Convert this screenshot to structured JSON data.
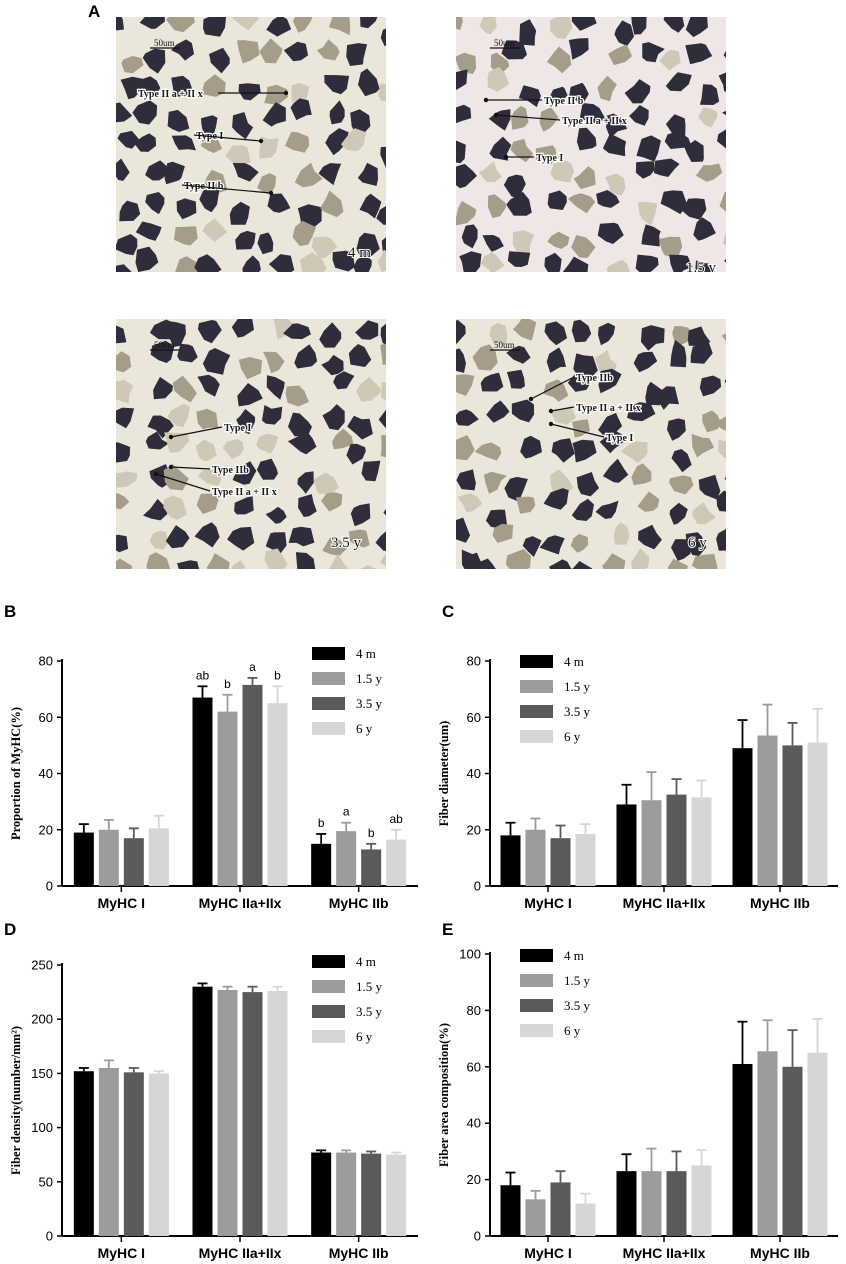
{
  "panel_labels": [
    "A",
    "B",
    "C",
    "D",
    "E"
  ],
  "micrographs": [
    {
      "scale_bar": "50um",
      "age_label": "4 m",
      "annotations": [
        "Type II a + II x",
        "Type I",
        "Type II b"
      ]
    },
    {
      "scale_bar": "50um",
      "age_label": "1.5 y",
      "annotations": [
        "Type II b",
        "Type II a + II x",
        "Type I"
      ]
    },
    {
      "scale_bar": "50um",
      "age_label": "3.5 y",
      "annotations": [
        "Type I",
        "Type IIb",
        "Type II a + II x"
      ]
    },
    {
      "scale_bar": "50um",
      "age_label": "6 y",
      "annotations": [
        "Type IIb",
        "Type II a + II x",
        "Type I"
      ]
    }
  ],
  "series_colors": [
    "#000000",
    "#9c9c9c",
    "#5a5a5a",
    "#d6d6d6"
  ],
  "chart_data": [
    {
      "panel": "B",
      "type": "bar",
      "categories": [
        "MyHC I",
        "MyHC IIa+IIx",
        "MyHC IIb"
      ],
      "ylabel": "Proportion of MyHC(%)",
      "ylim": [
        0,
        80
      ],
      "yticks": [
        0,
        20,
        40,
        60,
        80
      ],
      "legend": "top-right",
      "series": [
        {
          "name": "4 m",
          "values": [
            19,
            67,
            15
          ],
          "errors": [
            3,
            4,
            3.5
          ]
        },
        {
          "name": "1.5 y",
          "values": [
            20,
            62,
            19.5
          ],
          "errors": [
            3.5,
            6,
            3
          ]
        },
        {
          "name": "3.5 y",
          "values": [
            17,
            71.5,
            13
          ],
          "errors": [
            3.5,
            2.5,
            2
          ]
        },
        {
          "name": "6 y",
          "values": [
            20.5,
            65,
            16.5
          ],
          "errors": [
            4.5,
            6,
            3.5
          ]
        }
      ],
      "annotations": [
        [
          "",
          "ab",
          "b"
        ],
        [
          "",
          "b",
          "a"
        ],
        [
          "",
          "a",
          "b"
        ],
        [
          "",
          "b",
          "ab"
        ]
      ]
    },
    {
      "panel": "C",
      "type": "bar",
      "categories": [
        "MyHC I",
        "MyHC IIa+IIx",
        "MyHC IIb"
      ],
      "ylabel": "Fiber diameter(um)",
      "ylim": [
        0,
        80
      ],
      "yticks": [
        0,
        20,
        40,
        60,
        80
      ],
      "legend": "top-left",
      "series": [
        {
          "name": "4 m",
          "values": [
            18,
            29,
            49
          ],
          "errors": [
            4.5,
            7,
            10
          ]
        },
        {
          "name": "1.5 y",
          "values": [
            20,
            30.5,
            53.5
          ],
          "errors": [
            4,
            10,
            11
          ]
        },
        {
          "name": "3.5 y",
          "values": [
            17,
            32.5,
            50
          ],
          "errors": [
            4.5,
            5.5,
            8
          ]
        },
        {
          "name": "6 y",
          "values": [
            18.5,
            31.5,
            51
          ],
          "errors": [
            3.5,
            6,
            12
          ]
        }
      ]
    },
    {
      "panel": "D",
      "type": "bar",
      "categories": [
        "MyHC I",
        "MyHC IIa+IIx",
        "MyHC IIb"
      ],
      "ylabel": "Fiber density(number/mm²)",
      "ylim": [
        0,
        250
      ],
      "yticks": [
        0,
        50,
        100,
        150,
        200,
        250
      ],
      "legend": "top-right",
      "series": [
        {
          "name": "4 m",
          "values": [
            152,
            230,
            77
          ],
          "errors": [
            3,
            3,
            2
          ]
        },
        {
          "name": "1.5 y",
          "values": [
            155,
            227,
            77
          ],
          "errors": [
            7,
            3,
            2
          ]
        },
        {
          "name": "3.5 y",
          "values": [
            151,
            225,
            76
          ],
          "errors": [
            4,
            5,
            2
          ]
        },
        {
          "name": "6 y",
          "values": [
            150,
            226,
            75
          ],
          "errors": [
            2,
            4,
            2
          ]
        }
      ]
    },
    {
      "panel": "E",
      "type": "bar",
      "categories": [
        "MyHC I",
        "MyHC IIa+IIx",
        "MyHC IIb"
      ],
      "ylabel": "Fiber area composition(%)",
      "ylim": [
        0,
        100
      ],
      "yticks": [
        0,
        20,
        40,
        60,
        80,
        100
      ],
      "legend": "top-left",
      "series": [
        {
          "name": "4 m",
          "values": [
            18,
            23,
            61
          ],
          "errors": [
            4.5,
            6,
            15
          ]
        },
        {
          "name": "1.5 y",
          "values": [
            13,
            23,
            65.5
          ],
          "errors": [
            3,
            8,
            11
          ]
        },
        {
          "name": "3.5 y",
          "values": [
            19,
            23,
            60
          ],
          "errors": [
            4,
            7,
            13
          ]
        },
        {
          "name": "6 y",
          "values": [
            11.5,
            25,
            65
          ],
          "errors": [
            3.5,
            5.5,
            12
          ]
        }
      ]
    }
  ]
}
